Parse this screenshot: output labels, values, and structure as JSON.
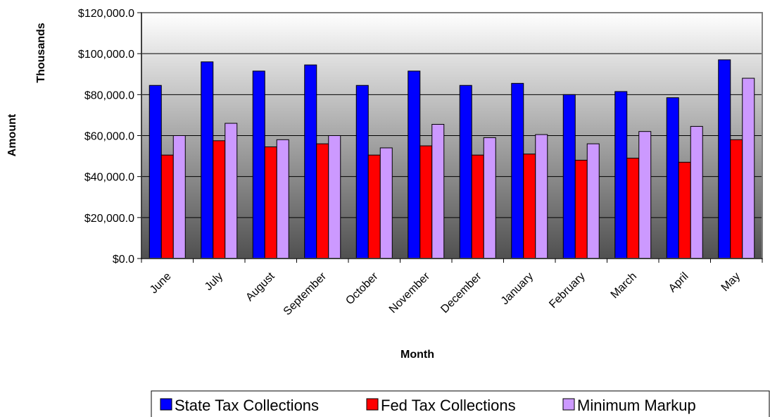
{
  "chart_data": {
    "type": "bar",
    "title": "",
    "xlabel": "Month",
    "ylabel": "Amount",
    "y_unit_label": "Thousands",
    "ylim": [
      0,
      120000
    ],
    "y_ticks": [
      0,
      20000,
      40000,
      60000,
      80000,
      100000,
      120000
    ],
    "y_tick_labels": [
      "$0.0",
      "$20,000.0",
      "$40,000.0",
      "$60,000.0",
      "$80,000.0",
      "$100,000.0",
      "$120,000.0"
    ],
    "categories": [
      "June",
      "July",
      "August",
      "September",
      "October",
      "November",
      "December",
      "January",
      "February",
      "March",
      "April",
      "May"
    ],
    "series": [
      {
        "name": "State Tax Collections",
        "color": "#0000ff",
        "values": [
          84500,
          96000,
          91500,
          94500,
          84500,
          91500,
          84500,
          85500,
          80000,
          81500,
          78500,
          97000
        ]
      },
      {
        "name": "Fed Tax Collections",
        "color": "#ff0000",
        "values": [
          50500,
          57500,
          54500,
          56000,
          50500,
          55000,
          50500,
          51000,
          48000,
          49000,
          47000,
          58000
        ]
      },
      {
        "name": "Minimum Markup",
        "color": "#cc99ff",
        "values": [
          60000,
          66000,
          58000,
          60000,
          54000,
          65500,
          59000,
          60500,
          56000,
          62000,
          64500,
          88000
        ]
      }
    ],
    "grid": true,
    "legend_position": "bottom"
  }
}
